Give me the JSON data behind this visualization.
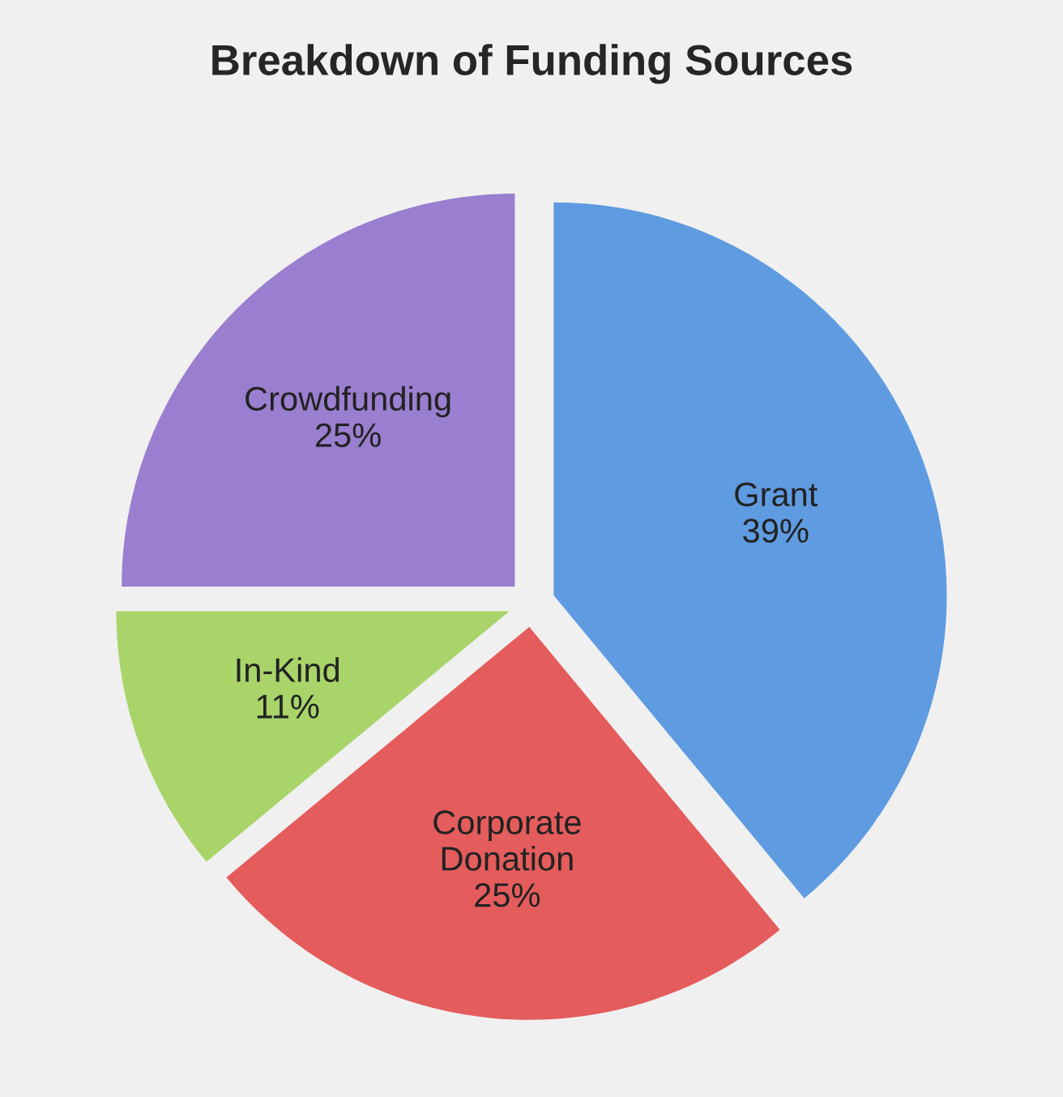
{
  "chart_data": {
    "type": "pie",
    "title": "Breakdown of Funding Sources",
    "categories": [
      "Grant",
      "Corporate Donation",
      "In-Kind",
      "Crowdfunding"
    ],
    "values": [
      39,
      25,
      11,
      25
    ],
    "value_labels": [
      "39%",
      "25%",
      "11%",
      "25%"
    ],
    "colors": [
      "#5f9be0",
      "#e45c5c",
      "#a9d46a",
      "#9a7fd0"
    ],
    "legend": false
  }
}
